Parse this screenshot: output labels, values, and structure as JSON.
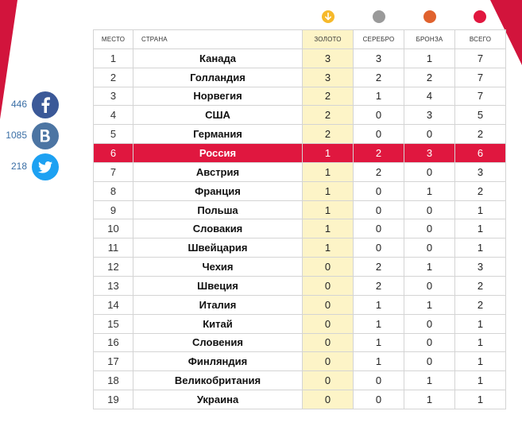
{
  "social": [
    {
      "network": "facebook",
      "count": "446",
      "icon": "facebook-icon",
      "color": "#3b5998"
    },
    {
      "network": "vkontakte",
      "count": "1085",
      "icon": "vk-icon",
      "color": "#4c75a3"
    },
    {
      "network": "twitter",
      "count": "218",
      "icon": "twitter-icon",
      "color": "#1da1f2"
    }
  ],
  "medal_colors": {
    "gold": "#f6b92b",
    "silver": "#9a9a9a",
    "bronze": "#e0622e",
    "total": "#e1173f"
  },
  "highlight_color": "#e0173f",
  "table": {
    "headers": {
      "place": "МЕСТО",
      "country": "СТРАНА",
      "gold": "ЗОЛОТО",
      "silver": "СЕРЕБРО",
      "bronze": "БРОНЗА",
      "total": "ВСЕГО"
    },
    "highlighted_country": "Россия",
    "rows": [
      {
        "place": "1",
        "country": "Канада",
        "gold": "3",
        "silver": "3",
        "bronze": "1",
        "total": "7"
      },
      {
        "place": "2",
        "country": "Голландия",
        "gold": "3",
        "silver": "2",
        "bronze": "2",
        "total": "7"
      },
      {
        "place": "3",
        "country": "Норвегия",
        "gold": "2",
        "silver": "1",
        "bronze": "4",
        "total": "7"
      },
      {
        "place": "4",
        "country": "США",
        "gold": "2",
        "silver": "0",
        "bronze": "3",
        "total": "5"
      },
      {
        "place": "5",
        "country": "Германия",
        "gold": "2",
        "silver": "0",
        "bronze": "0",
        "total": "2"
      },
      {
        "place": "6",
        "country": "Россия",
        "gold": "1",
        "silver": "2",
        "bronze": "3",
        "total": "6"
      },
      {
        "place": "7",
        "country": "Австрия",
        "gold": "1",
        "silver": "2",
        "bronze": "0",
        "total": "3"
      },
      {
        "place": "8",
        "country": "Франция",
        "gold": "1",
        "silver": "0",
        "bronze": "1",
        "total": "2"
      },
      {
        "place": "9",
        "country": "Польша",
        "gold": "1",
        "silver": "0",
        "bronze": "0",
        "total": "1"
      },
      {
        "place": "10",
        "country": "Словакия",
        "gold": "1",
        "silver": "0",
        "bronze": "0",
        "total": "1"
      },
      {
        "place": "11",
        "country": "Швейцария",
        "gold": "1",
        "silver": "0",
        "bronze": "0",
        "total": "1"
      },
      {
        "place": "12",
        "country": "Чехия",
        "gold": "0",
        "silver": "2",
        "bronze": "1",
        "total": "3"
      },
      {
        "place": "13",
        "country": "Швеция",
        "gold": "0",
        "silver": "2",
        "bronze": "0",
        "total": "2"
      },
      {
        "place": "14",
        "country": "Италия",
        "gold": "0",
        "silver": "1",
        "bronze": "1",
        "total": "2"
      },
      {
        "place": "15",
        "country": "Китай",
        "gold": "0",
        "silver": "1",
        "bronze": "0",
        "total": "1"
      },
      {
        "place": "16",
        "country": "Словения",
        "gold": "0",
        "silver": "1",
        "bronze": "0",
        "total": "1"
      },
      {
        "place": "17",
        "country": "Финляндия",
        "gold": "0",
        "silver": "1",
        "bronze": "0",
        "total": "1"
      },
      {
        "place": "18",
        "country": "Великобритания",
        "gold": "0",
        "silver": "0",
        "bronze": "1",
        "total": "1"
      },
      {
        "place": "19",
        "country": "Украина",
        "gold": "0",
        "silver": "0",
        "bronze": "1",
        "total": "1"
      }
    ]
  }
}
